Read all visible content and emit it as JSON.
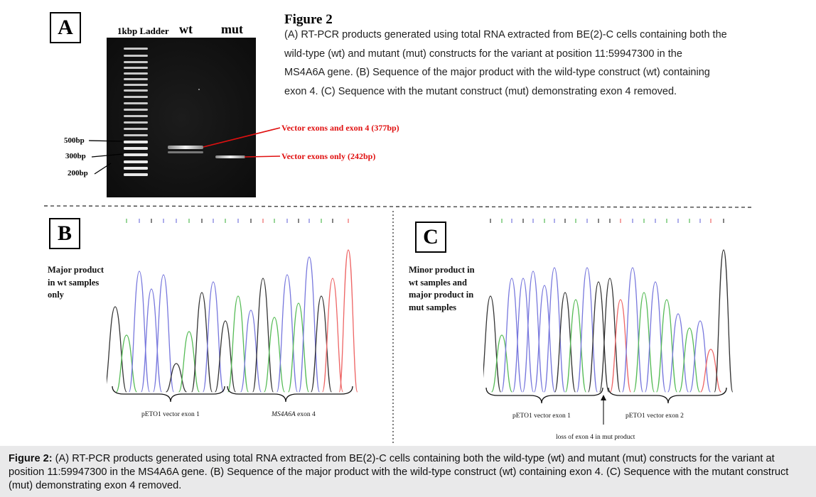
{
  "panel_a": {
    "letter": "A",
    "ladder_label": "1kbp Ladder",
    "wt_label": "wt",
    "mut_label": "mut",
    "size_markers": [
      "500bp",
      "300bp",
      "200bp"
    ],
    "band_labels": [
      "Vector exons and exon 4 (377bp)",
      "Vector exons only (242bp)"
    ],
    "figure_heading": "Figure 2",
    "figure_text_lines": [
      "(A) RT-PCR products generated using total RNA extracted from BE(2)-C cells containing both the",
      "wild-type (wt) and mutant (mut) constructs for the variant at position 11:59947300 in the",
      "MS4A6A gene. (B) Sequence of the major product with the wild-type construct (wt) containing",
      "exon 4. (C) Sequence with the mutant construct (mut) demonstrating exon 4 removed."
    ]
  },
  "panel_b": {
    "letter": "B",
    "note_lines": [
      "Major product",
      "in wt samples",
      "only"
    ],
    "brace_left_label": "pETO1 vector exon 1",
    "brace_right_gene": "MS4A6A",
    "brace_right_suffix": " exon 4"
  },
  "panel_c": {
    "letter": "C",
    "note_lines": [
      "Minor product in",
      "wt samples and",
      "major product in",
      "mut samples"
    ],
    "brace_left_label": "pETO1 vector exon 1",
    "brace_right_label": "pETO1 vector exon 2",
    "junction_label": "loss of exon 4 in mut product"
  },
  "caption": {
    "label": "Figure 2:",
    "text": " (A) RT-PCR products generated using total RNA extracted from BE(2)-C cells containing both the wild-type (wt) and mutant (mut) constructs for the variant at position 11:59947300 in the MS4A6A gene. (B) Sequence of the major product with the wild-type construct (wt) containing exon 4. (C) Sequence with the mutant construct (mut) demonstrating exon 4 removed."
  },
  "colors": {
    "annotation_red": "#e01010",
    "trace_blue": "#7777dd",
    "trace_green": "#55bb55",
    "trace_black": "#333333",
    "trace_red": "#ee6666",
    "caption_background": "#e9e9ea"
  }
}
